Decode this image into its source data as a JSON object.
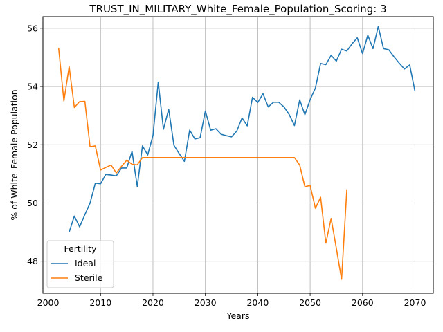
{
  "chart_data": {
    "type": "line",
    "title": "TRUST_IN_MILITARY_White_Female_Population_Scoring: 3",
    "xlabel": "Years",
    "ylabel": "% of White_Female Population",
    "xlim": [
      1999,
      2073.5
    ],
    "ylim": [
      46.9,
      56.4
    ],
    "xticks": [
      2000,
      2010,
      2020,
      2030,
      2040,
      2050,
      2060,
      2070
    ],
    "yticks": [
      48,
      50,
      52,
      54,
      56
    ],
    "grid": true,
    "legend": {
      "title": "Fertility",
      "position": "lower-left"
    },
    "series": [
      {
        "name": "Ideal",
        "color": "#1f77b4",
        "x": [
          2004,
          2005,
          2006,
          2007,
          2008,
          2009,
          2010,
          2011,
          2012,
          2013,
          2014,
          2015,
          2016,
          2017,
          2018,
          2019,
          2020,
          2021,
          2022,
          2023,
          2024,
          2025,
          2026,
          2027,
          2028,
          2029,
          2030,
          2031,
          2032,
          2033,
          2034,
          2035,
          2036,
          2037,
          2038,
          2039,
          2040,
          2041,
          2042,
          2043,
          2044,
          2045,
          2046,
          2047,
          2048,
          2049,
          2050,
          2051,
          2052,
          2053,
          2054,
          2055,
          2056,
          2057,
          2058,
          2059,
          2060,
          2061,
          2062,
          2063,
          2064,
          2065,
          2066,
          2067,
          2068,
          2069,
          2070
        ],
        "y": [
          49.0,
          49.55,
          49.18,
          49.6,
          50.0,
          50.68,
          50.66,
          50.98,
          50.96,
          50.93,
          51.2,
          51.2,
          51.77,
          50.57,
          51.96,
          51.65,
          52.32,
          54.15,
          52.53,
          53.22,
          51.98,
          51.7,
          51.43,
          52.5,
          52.2,
          52.24,
          53.16,
          52.5,
          52.55,
          52.36,
          52.31,
          52.27,
          52.47,
          52.92,
          52.65,
          53.63,
          53.45,
          53.75,
          53.3,
          53.46,
          53.46,
          53.3,
          53.04,
          52.66,
          53.54,
          53.03,
          53.55,
          53.95,
          54.79,
          54.75,
          55.07,
          54.87,
          55.28,
          55.22,
          55.47,
          55.67,
          55.13,
          55.76,
          55.3,
          56.06,
          55.3,
          55.26,
          55.02,
          54.8,
          54.6,
          54.74,
          53.84
        ]
      },
      {
        "name": "Sterile",
        "color": "#ff7f0e",
        "x": [
          2002,
          2003,
          2004,
          2005,
          2006,
          2007,
          2008,
          2009,
          2010,
          2011,
          2012,
          2013,
          2014,
          2015,
          2016,
          2017,
          2018,
          2019,
          2020,
          2021,
          2022,
          2023,
          2024,
          2025,
          2026,
          2027,
          2028,
          2029,
          2030,
          2031,
          2032,
          2033,
          2034,
          2035,
          2036,
          2037,
          2038,
          2039,
          2040,
          2041,
          2042,
          2043,
          2044,
          2045,
          2046,
          2047,
          2048,
          2049,
          2050,
          2051,
          2052,
          2053,
          2054,
          2055,
          2056,
          2057
        ],
        "y": [
          55.32,
          53.5,
          54.68,
          53.28,
          53.48,
          53.49,
          51.93,
          51.96,
          51.13,
          51.22,
          51.3,
          51.03,
          51.26,
          51.47,
          51.33,
          51.31,
          51.56,
          51.56,
          51.56,
          51.56,
          51.56,
          51.56,
          51.56,
          51.56,
          51.56,
          51.56,
          51.56,
          51.56,
          51.56,
          51.56,
          51.56,
          51.56,
          51.56,
          51.56,
          51.56,
          51.56,
          51.56,
          51.56,
          51.56,
          51.56,
          51.56,
          51.56,
          51.56,
          51.56,
          51.56,
          51.56,
          51.3,
          50.56,
          50.6,
          49.82,
          50.2,
          48.62,
          49.47,
          48.45,
          47.38,
          50.47
        ]
      }
    ]
  }
}
